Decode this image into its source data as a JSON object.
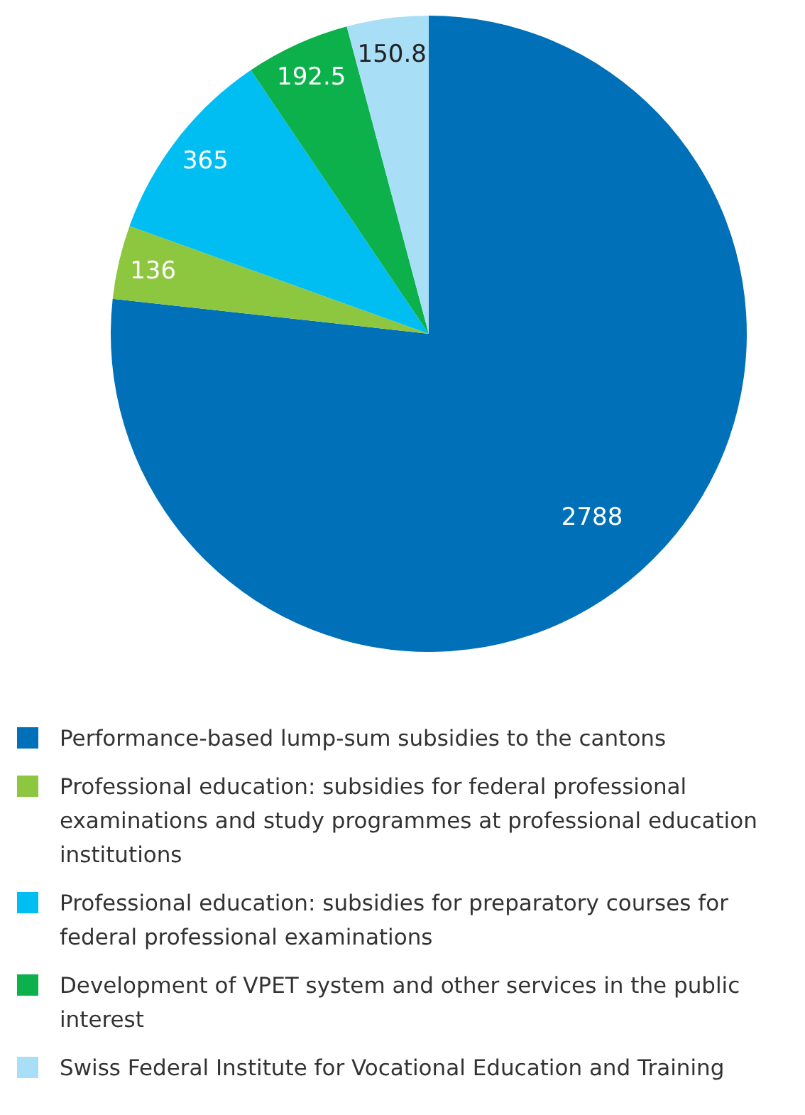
{
  "chart_data": {
    "type": "pie",
    "categories": [
      "Performance-based lump-sum subsidies to the cantons",
      "Professional education: subsidies for federal professional examinations and study programmes at professional education institutions",
      "Professional education: subsidies for preparatory courses for federal professional examinations",
      "Development of VPET system and other services in the public interest",
      "Swiss Federal Institute for Vocational Education and Training"
    ],
    "values": [
      2788,
      136,
      365,
      192.5,
      150.8
    ],
    "colors": [
      "#0070b8",
      "#8dc63f",
      "#00bdf2",
      "#0db14b",
      "#a8dff7"
    ],
    "data_labels": true,
    "legend": "bottom"
  }
}
